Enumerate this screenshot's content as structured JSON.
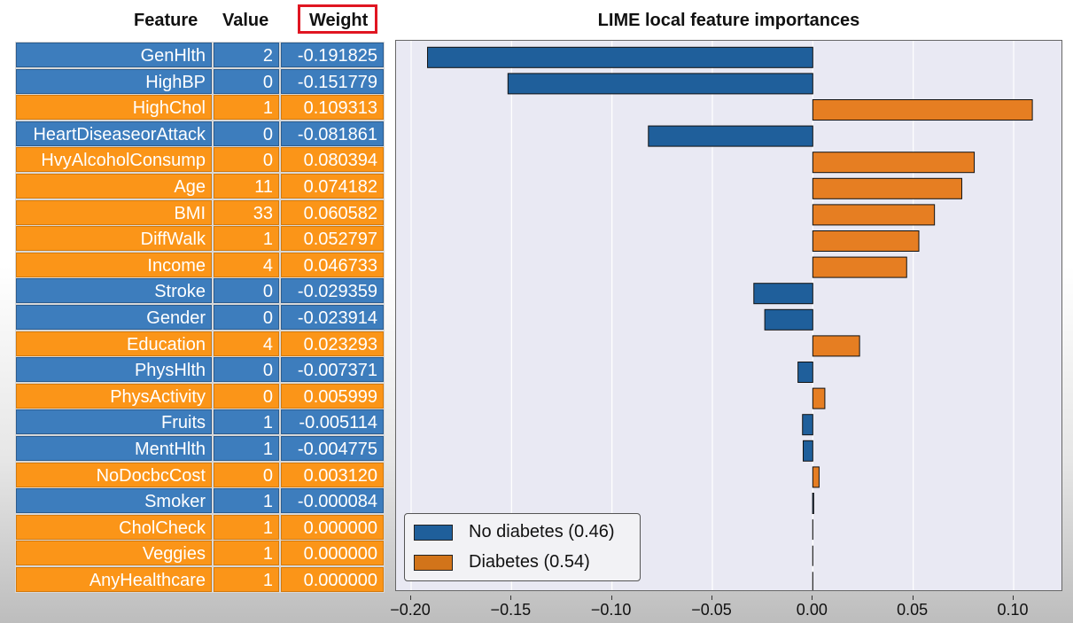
{
  "table": {
    "headers": {
      "feature": "Feature",
      "value": "Value",
      "weight": "Weight"
    },
    "rows": [
      {
        "feature": "GenHlth",
        "value": "2",
        "weight": "-0.191825"
      },
      {
        "feature": "HighBP",
        "value": "0",
        "weight": "-0.151779"
      },
      {
        "feature": "HighChol",
        "value": "1",
        "weight": "0.109313"
      },
      {
        "feature": "HeartDiseaseorAttack",
        "value": "0",
        "weight": "-0.081861"
      },
      {
        "feature": "HvyAlcoholConsump",
        "value": "0",
        "weight": "0.080394"
      },
      {
        "feature": "Age",
        "value": "11",
        "weight": "0.074182"
      },
      {
        "feature": "BMI",
        "value": "33",
        "weight": "0.060582"
      },
      {
        "feature": "DiffWalk",
        "value": "1",
        "weight": "0.052797"
      },
      {
        "feature": "Income",
        "value": "4",
        "weight": "0.046733"
      },
      {
        "feature": "Stroke",
        "value": "0",
        "weight": "-0.029359"
      },
      {
        "feature": "Gender",
        "value": "0",
        "weight": "-0.023914"
      },
      {
        "feature": "Education",
        "value": "4",
        "weight": "0.023293"
      },
      {
        "feature": "PhysHlth",
        "value": "0",
        "weight": "-0.007371"
      },
      {
        "feature": "PhysActivity",
        "value": "0",
        "weight": "0.005999"
      },
      {
        "feature": "Fruits",
        "value": "1",
        "weight": "-0.005114"
      },
      {
        "feature": "MentHlth",
        "value": "1",
        "weight": "-0.004775"
      },
      {
        "feature": "NoDocbcCost",
        "value": "0",
        "weight": "0.003120"
      },
      {
        "feature": "Smoker",
        "value": "1",
        "weight": "-0.000084"
      },
      {
        "feature": "CholCheck",
        "value": "1",
        "weight": "0.000000"
      },
      {
        "feature": "Veggies",
        "value": "1",
        "weight": "0.000000"
      },
      {
        "feature": "AnyHealthcare",
        "value": "1",
        "weight": "0.000000"
      }
    ]
  },
  "colors": {
    "negative": "#1f5f9b",
    "positive": "#e67e22",
    "highlight_box": "#e01622"
  },
  "chart_data": {
    "type": "bar",
    "orientation": "horizontal",
    "title": "LIME local feature importances",
    "categories": [
      "GenHlth",
      "HighBP",
      "HighChol",
      "HeartDiseaseorAttack",
      "HvyAlcoholConsump",
      "Age",
      "BMI",
      "DiffWalk",
      "Income",
      "Stroke",
      "Gender",
      "Education",
      "PhysHlth",
      "PhysActivity",
      "Fruits",
      "MentHlth",
      "NoDocbcCost",
      "Smoker",
      "CholCheck",
      "Veggies",
      "AnyHealthcare"
    ],
    "values": [
      -0.191825,
      -0.151779,
      0.109313,
      -0.081861,
      0.080394,
      0.074182,
      0.060582,
      0.052797,
      0.046733,
      -0.029359,
      -0.023914,
      0.023293,
      -0.007371,
      0.005999,
      -0.005114,
      -0.004775,
      0.00312,
      -8.4e-05,
      0.0,
      0.0,
      0.0
    ],
    "xlim": [
      -0.2,
      0.12
    ],
    "xticks": [
      "−0.20",
      "−0.15",
      "−0.10",
      "−0.05",
      "0.00",
      "0.05",
      "0.10"
    ],
    "xtick_values": [
      -0.2,
      -0.15,
      -0.1,
      -0.05,
      0.0,
      0.05,
      0.1
    ],
    "grid": true,
    "legend": {
      "placement": "lower-left",
      "entries": [
        {
          "label": "No diabetes (0.46)",
          "color": "#1f5f9b"
        },
        {
          "label": "Diabetes (0.54)",
          "color": "#d2741a"
        }
      ]
    }
  }
}
